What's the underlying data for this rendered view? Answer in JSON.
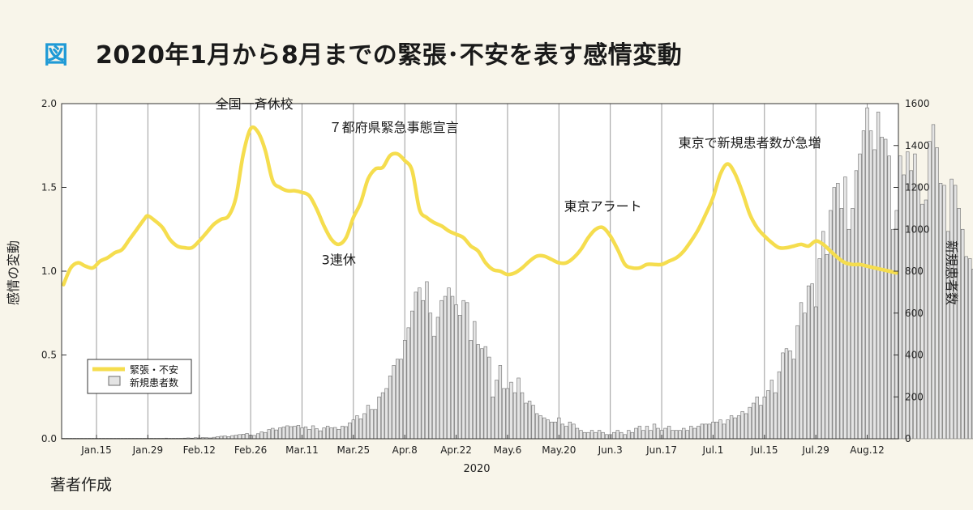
{
  "figure_label": "図",
  "title": "2020年1月から8月までの緊張･不安を表す感情変動",
  "source": "著者作成",
  "colors": {
    "line": "#f5dd4e",
    "bar_fill": "#e4e4e4",
    "bar_stroke": "#6e6e6e",
    "grid": "#9a9a9a",
    "background": "#f8f5ea",
    "plot_background": "#ffffff",
    "accent": "#1f9ad6"
  },
  "chart_data": {
    "type": "bar+line",
    "xlabel": "2020",
    "ylabel_left": "感情の変動",
    "ylabel_right": "新規患者数",
    "x_start": "2020-01-06",
    "x_end": "2020-08-20",
    "ylim_left": [
      0,
      2
    ],
    "ylim_right": [
      0,
      1600
    ],
    "yticks_left": [
      "0.0",
      "0.5",
      "1.0",
      "1.5",
      "2.0"
    ],
    "yticks_right": [
      "0",
      "200",
      "400",
      "600",
      "800",
      "1000",
      "1200",
      "1400",
      "1600"
    ],
    "xticks": [
      {
        "label": "Jan.15",
        "date": "2020-01-15"
      },
      {
        "label": "Jan.29",
        "date": "2020-01-29"
      },
      {
        "label": "Feb.12",
        "date": "2020-02-12"
      },
      {
        "label": "Feb.26",
        "date": "2020-02-26"
      },
      {
        "label": "Mar.11",
        "date": "2020-03-11"
      },
      {
        "label": "Mar.25",
        "date": "2020-03-25"
      },
      {
        "label": "Apr.8",
        "date": "2020-04-08"
      },
      {
        "label": "Apr.22",
        "date": "2020-04-22"
      },
      {
        "label": "May.6",
        "date": "2020-05-06"
      },
      {
        "label": "May.20",
        "date": "2020-05-20"
      },
      {
        "label": "Jun.3",
        "date": "2020-06-03"
      },
      {
        "label": "Jun.17",
        "date": "2020-06-17"
      },
      {
        "label": "Jul.1",
        "date": "2020-07-01"
      },
      {
        "label": "Jul.15",
        "date": "2020-07-15"
      },
      {
        "label": "Jul.29",
        "date": "2020-07-29"
      },
      {
        "label": "Aug.12",
        "date": "2020-08-12"
      }
    ],
    "grid": "vertical",
    "legend": {
      "placement": "bottom-left",
      "entries": [
        {
          "label": "緊張・不安",
          "kind": "line"
        },
        {
          "label": "新規患者数",
          "kind": "bar"
        }
      ]
    },
    "annotations": [
      {
        "text": "全国一斉休校",
        "date": "2020-02-27",
        "value": 1.97
      },
      {
        "text": "７都府県緊急事態宣言",
        "date": "2020-04-05",
        "value": 1.83
      },
      {
        "text": "3連休",
        "date": "2020-03-21",
        "value": 1.04
      },
      {
        "text": "東京アラート",
        "date": "2020-06-01",
        "value": 1.36
      },
      {
        "text": "東京で新規患者数が急増",
        "date": "2020-07-11",
        "value": 1.74
      }
    ],
    "series": [
      {
        "name": "緊張・不安",
        "axis": "left",
        "kind": "line",
        "points": [
          [
            "2020-01-06",
            0.92
          ],
          [
            "2020-01-08",
            1.02
          ],
          [
            "2020-01-10",
            1.05
          ],
          [
            "2020-01-12",
            1.03
          ],
          [
            "2020-01-14",
            1.02
          ],
          [
            "2020-01-16",
            1.06
          ],
          [
            "2020-01-18",
            1.08
          ],
          [
            "2020-01-20",
            1.11
          ],
          [
            "2020-01-22",
            1.13
          ],
          [
            "2020-01-24",
            1.19
          ],
          [
            "2020-01-26",
            1.25
          ],
          [
            "2020-01-28",
            1.31
          ],
          [
            "2020-01-29",
            1.33
          ],
          [
            "2020-01-31",
            1.3
          ],
          [
            "2020-02-02",
            1.26
          ],
          [
            "2020-02-04",
            1.19
          ],
          [
            "2020-02-06",
            1.15
          ],
          [
            "2020-02-08",
            1.14
          ],
          [
            "2020-02-10",
            1.14
          ],
          [
            "2020-02-12",
            1.18
          ],
          [
            "2020-02-14",
            1.23
          ],
          [
            "2020-02-16",
            1.28
          ],
          [
            "2020-02-18",
            1.31
          ],
          [
            "2020-02-20",
            1.33
          ],
          [
            "2020-02-22",
            1.44
          ],
          [
            "2020-02-24",
            1.7
          ],
          [
            "2020-02-26",
            1.85
          ],
          [
            "2020-02-28",
            1.83
          ],
          [
            "2020-03-01",
            1.72
          ],
          [
            "2020-03-03",
            1.54
          ],
          [
            "2020-03-05",
            1.5
          ],
          [
            "2020-03-07",
            1.48
          ],
          [
            "2020-03-09",
            1.48
          ],
          [
            "2020-03-11",
            1.47
          ],
          [
            "2020-03-13",
            1.45
          ],
          [
            "2020-03-15",
            1.37
          ],
          [
            "2020-03-17",
            1.27
          ],
          [
            "2020-03-19",
            1.19
          ],
          [
            "2020-03-21",
            1.16
          ],
          [
            "2020-03-23",
            1.2
          ],
          [
            "2020-03-25",
            1.32
          ],
          [
            "2020-03-27",
            1.41
          ],
          [
            "2020-03-29",
            1.55
          ],
          [
            "2020-03-31",
            1.61
          ],
          [
            "2020-04-02",
            1.62
          ],
          [
            "2020-04-04",
            1.69
          ],
          [
            "2020-04-06",
            1.7
          ],
          [
            "2020-04-08",
            1.66
          ],
          [
            "2020-04-10",
            1.6
          ],
          [
            "2020-04-12",
            1.37
          ],
          [
            "2020-04-14",
            1.32
          ],
          [
            "2020-04-16",
            1.29
          ],
          [
            "2020-04-18",
            1.27
          ],
          [
            "2020-04-20",
            1.24
          ],
          [
            "2020-04-22",
            1.22
          ],
          [
            "2020-04-24",
            1.2
          ],
          [
            "2020-04-26",
            1.15
          ],
          [
            "2020-04-28",
            1.12
          ],
          [
            "2020-04-30",
            1.05
          ],
          [
            "2020-05-02",
            1.01
          ],
          [
            "2020-05-04",
            1.0
          ],
          [
            "2020-05-06",
            0.98
          ],
          [
            "2020-05-08",
            0.99
          ],
          [
            "2020-05-10",
            1.02
          ],
          [
            "2020-05-12",
            1.06
          ],
          [
            "2020-05-14",
            1.09
          ],
          [
            "2020-05-16",
            1.09
          ],
          [
            "2020-05-18",
            1.07
          ],
          [
            "2020-05-20",
            1.05
          ],
          [
            "2020-05-22",
            1.05
          ],
          [
            "2020-05-24",
            1.08
          ],
          [
            "2020-05-26",
            1.13
          ],
          [
            "2020-05-28",
            1.2
          ],
          [
            "2020-05-30",
            1.25
          ],
          [
            "2020-06-01",
            1.26
          ],
          [
            "2020-06-03",
            1.21
          ],
          [
            "2020-06-05",
            1.13
          ],
          [
            "2020-06-07",
            1.04
          ],
          [
            "2020-06-09",
            1.02
          ],
          [
            "2020-06-11",
            1.02
          ],
          [
            "2020-06-13",
            1.04
          ],
          [
            "2020-06-15",
            1.04
          ],
          [
            "2020-06-17",
            1.04
          ],
          [
            "2020-06-19",
            1.06
          ],
          [
            "2020-06-21",
            1.08
          ],
          [
            "2020-06-23",
            1.12
          ],
          [
            "2020-06-25",
            1.18
          ],
          [
            "2020-06-27",
            1.25
          ],
          [
            "2020-06-29",
            1.34
          ],
          [
            "2020-07-01",
            1.44
          ],
          [
            "2020-07-03",
            1.58
          ],
          [
            "2020-07-05",
            1.64
          ],
          [
            "2020-07-07",
            1.58
          ],
          [
            "2020-07-09",
            1.47
          ],
          [
            "2020-07-11",
            1.34
          ],
          [
            "2020-07-13",
            1.26
          ],
          [
            "2020-07-15",
            1.21
          ],
          [
            "2020-07-17",
            1.17
          ],
          [
            "2020-07-19",
            1.14
          ],
          [
            "2020-07-21",
            1.14
          ],
          [
            "2020-07-23",
            1.15
          ],
          [
            "2020-07-25",
            1.16
          ],
          [
            "2020-07-27",
            1.15
          ],
          [
            "2020-07-29",
            1.18
          ],
          [
            "2020-07-31",
            1.16
          ],
          [
            "2020-08-02",
            1.12
          ],
          [
            "2020-08-04",
            1.08
          ],
          [
            "2020-08-06",
            1.05
          ],
          [
            "2020-08-08",
            1.04
          ],
          [
            "2020-08-10",
            1.04
          ],
          [
            "2020-08-12",
            1.03
          ],
          [
            "2020-08-14",
            1.02
          ],
          [
            "2020-08-16",
            1.01
          ],
          [
            "2020-08-18",
            1.0
          ],
          [
            "2020-08-20",
            0.99
          ]
        ]
      },
      {
        "name": "新規患者数",
        "axis": "right",
        "kind": "bar",
        "start_date": "2020-01-06",
        "values": [
          1,
          0,
          0,
          0,
          0,
          1,
          0,
          0,
          0,
          0,
          1,
          0,
          1,
          0,
          1,
          0,
          2,
          1,
          0,
          1,
          1,
          0,
          1,
          0,
          2,
          1,
          1,
          2,
          3,
          2,
          1,
          1,
          2,
          3,
          4,
          3,
          5,
          4,
          6,
          5,
          4,
          7,
          10,
          12,
          14,
          10,
          15,
          17,
          20,
          22,
          25,
          18,
          16,
          24,
          33,
          30,
          44,
          50,
          42,
          52,
          56,
          62,
          58,
          60,
          64,
          52,
          57,
          45,
          62,
          48,
          38,
          52,
          60,
          52,
          54,
          45,
          60,
          58,
          76,
          90,
          110,
          95,
          120,
          160,
          140,
          140,
          200,
          220,
          240,
          300,
          350,
          380,
          380,
          470,
          530,
          610,
          700,
          720,
          660,
          750,
          600,
          490,
          580,
          660,
          680,
          720,
          680,
          640,
          590,
          660,
          650,
          470,
          560,
          450,
          430,
          440,
          390,
          200,
          280,
          350,
          240,
          240,
          270,
          220,
          290,
          220,
          170,
          180,
          160,
          120,
          110,
          100,
          90,
          80,
          80,
          100,
          70,
          60,
          80,
          70,
          50,
          40,
          30,
          30,
          40,
          30,
          40,
          30,
          20,
          20,
          30,
          40,
          30,
          20,
          40,
          30,
          50,
          60,
          40,
          60,
          40,
          70,
          50,
          40,
          50,
          60,
          40,
          40,
          40,
          50,
          40,
          60,
          50,
          60,
          70,
          70,
          70,
          80,
          80,
          90,
          70,
          90,
          110,
          100,
          110,
          130,
          120,
          150,
          170,
          200,
          160,
          200,
          230,
          280,
          220,
          320,
          410,
          430,
          420,
          380,
          540,
          650,
          600,
          730,
          740,
          630,
          860,
          990,
          880,
          1090,
          1200,
          1220,
          1100,
          1250,
          1000,
          1100,
          1280,
          1360,
          1470,
          1580,
          1470,
          1380,
          1560,
          1440,
          1430,
          1350,
          1000,
          1090,
          1350,
          1260,
          1370,
          1280,
          1360,
          1210,
          1120,
          1140,
          1420,
          1500,
          1390,
          1220,
          1210,
          990,
          1240,
          1210,
          1100,
          1000,
          870,
          860,
          810,
          820,
          920,
          1020,
          1050,
          1030
        ]
      }
    ]
  }
}
